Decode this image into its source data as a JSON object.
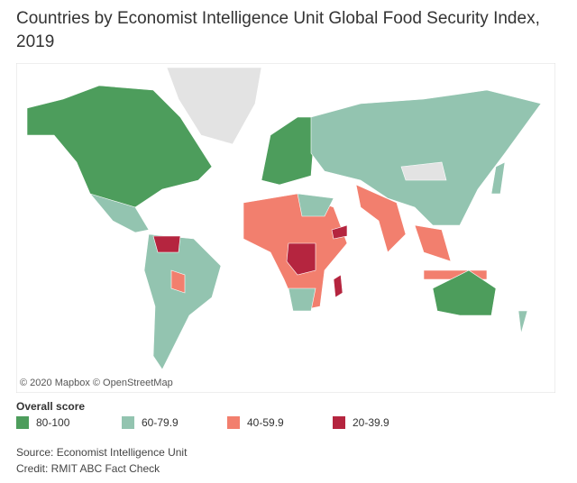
{
  "header": {
    "title": "Countries by Economist Intelligence Unit Global Food Security Index, 2019"
  },
  "map": {
    "attribution": "© 2020 Mapbox © OpenStreetMap"
  },
  "legend": {
    "title": "Overall score",
    "items": [
      {
        "label": "80-100",
        "color": "#4d9d5c"
      },
      {
        "label": "60-79.9",
        "color": "#93c4b0"
      },
      {
        "label": "40-59.9",
        "color": "#f27f6e"
      },
      {
        "label": "20-39.9",
        "color": "#b5253f"
      }
    ],
    "no_data_color": "#e3e3e3"
  },
  "footer": {
    "source": "Source: Economist Intelligence Unit",
    "credit": "Credit: RMIT ABC Fact Check"
  }
}
